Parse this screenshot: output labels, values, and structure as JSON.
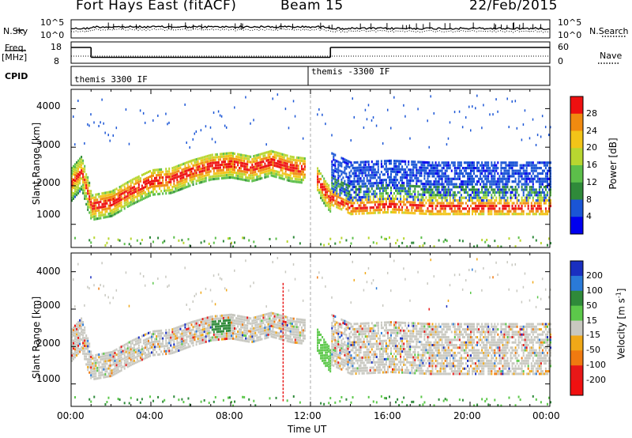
{
  "header": {
    "station": "Fort Hays East (fitACF)",
    "beam": "Beam 15",
    "date": "22/Feb/2015"
  },
  "noise_panel": {
    "left_label": "N.Sky",
    "right_label": "N.Search",
    "left_ticks": [
      "10^5",
      "10^0"
    ],
    "right_ticks": [
      "10^5",
      "10^0"
    ]
  },
  "freq_panel": {
    "left_label_1": "Freq.",
    "left_label_2": "[MHz]",
    "left_ticks": [
      "18",
      "8"
    ],
    "right_label": "Nave",
    "right_ticks": [
      "60",
      "0"
    ]
  },
  "cpid": {
    "label": "CPID",
    "segments": [
      "themis 3300 IF",
      "themis -3300 IF"
    ]
  },
  "power_panel": {
    "ylabel": "Slant Range [km]",
    "yticks": [
      "4000",
      "3000",
      "2000",
      "1000"
    ],
    "colorbar_label": "Power [dB]",
    "colorbar_ticks": [
      "28",
      "24",
      "20",
      "16",
      "12",
      "8",
      "4"
    ],
    "colors": [
      "#0000ee",
      "#1a55d6",
      "#2f8a3a",
      "#5cbf4a",
      "#b8d630",
      "#f2c418",
      "#f08a10",
      "#ee1010"
    ]
  },
  "velocity_panel": {
    "ylabel": "Slant Range [km]",
    "yticks": [
      "4000",
      "3000",
      "2000",
      "1000"
    ],
    "colorbar_label": "Velocity [m s",
    "colorbar_sup": "-1",
    "colorbar_label_end": "]",
    "colorbar_ticks": [
      "200",
      "100",
      "50",
      "15",
      "-15",
      "-50",
      "-100",
      "-200"
    ],
    "colors": [
      "#1a2fc0",
      "#2a7ad8",
      "#2f8a3a",
      "#5cc84a",
      "#c8c8c0",
      "#f0a818",
      "#f07a10",
      "#e81818",
      "#f01010"
    ]
  },
  "xaxis": {
    "ticks": [
      "00:00",
      "04:00",
      "08:00",
      "12:00",
      "16:00",
      "20:00",
      "00:00"
    ],
    "label": "Time UT"
  },
  "chart_data": {
    "type": "heatmap",
    "x_range_hours": [
      0,
      24
    ],
    "y_range_km": [
      400,
      4500
    ],
    "cpid_switch_hour": 13,
    "frequency_mhz": [
      {
        "start_hour": 0,
        "end_hour": 1,
        "value": 16
      },
      {
        "start_hour": 1,
        "end_hour": 13,
        "value": 11
      },
      {
        "start_hour": 13,
        "end_hour": 24,
        "value": 16
      }
    ],
    "power_db_range": [
      0,
      30
    ],
    "velocity_range": [
      -250,
      250
    ],
    "scatter_band_center_km": [
      {
        "hour": 0.0,
        "km": 2100
      },
      {
        "hour": 0.5,
        "km": 2400
      },
      {
        "hour": 1.0,
        "km": 1500
      },
      {
        "hour": 2.0,
        "km": 1600
      },
      {
        "hour": 3.0,
        "km": 1900
      },
      {
        "hour": 4.0,
        "km": 2150
      },
      {
        "hour": 5.0,
        "km": 2200
      },
      {
        "hour": 6.0,
        "km": 2400
      },
      {
        "hour": 7.0,
        "km": 2550
      },
      {
        "hour": 8.0,
        "km": 2600
      },
      {
        "hour": 9.0,
        "km": 2500
      },
      {
        "hour": 10.0,
        "km": 2650
      },
      {
        "hour": 11.0,
        "km": 2500
      },
      {
        "hour": 11.8,
        "km": 2450
      },
      {
        "hour": 12.2,
        "km": 2300
      },
      {
        "hour": 12.8,
        "km": 1800
      },
      {
        "hour": 13.0,
        "km": 1700
      },
      {
        "hour": 14.0,
        "km": 1450
      },
      {
        "hour": 16.0,
        "km": 1500
      },
      {
        "hour": 18.0,
        "km": 1450
      },
      {
        "hour": 20.0,
        "km": 1450
      },
      {
        "hour": 22.0,
        "km": 1450
      },
      {
        "hour": 24.0,
        "km": 1450
      }
    ]
  }
}
